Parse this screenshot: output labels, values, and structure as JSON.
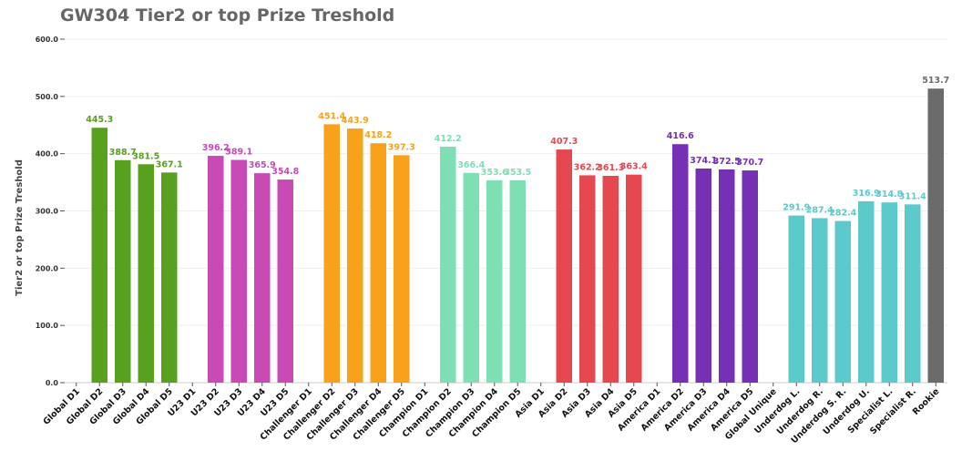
{
  "chart_data": {
    "type": "bar",
    "title": "GW304 Tier2 or top Prize Treshold",
    "xlabel": "",
    "ylabel": "Tier2 or top Prize Treshold",
    "ylim": [
      0,
      600
    ],
    "yticks": [
      "0.0",
      "100.0",
      "200.0",
      "300.0",
      "400.0",
      "500.0",
      "600.0"
    ],
    "ytick_values": [
      0,
      100,
      200,
      300,
      400,
      500,
      600
    ],
    "grid": true,
    "legend": "none",
    "categories": [
      "Global D1",
      "Global D2",
      "Global D3",
      "Global D4",
      "Global D5",
      "U23 D1",
      "U23 D2",
      "U23 D3",
      "U23 D4",
      "U23 D5",
      "Challenger D1",
      "Challenger D2",
      "Challenger D3",
      "Challenger D4",
      "Challenger D5",
      "Champion D1",
      "Champion D2",
      "Champion D3",
      "Champion D4",
      "Champion D5",
      "Asia D1",
      "Asia D2",
      "Asia D3",
      "Asia D4",
      "Asia D5",
      "America D1",
      "America D2",
      "America D3",
      "America D4",
      "America D5",
      "Global Unique",
      "Underdog L.",
      "Underdog R.",
      "Underdog S. R.",
      "Underdog U.",
      "Specialist L.",
      "Specialist R.",
      "Rookie"
    ],
    "values": [
      null,
      445.3,
      388.7,
      381.5,
      367.1,
      null,
      396.2,
      389.1,
      365.9,
      354.8,
      null,
      451.4,
      443.9,
      418.2,
      397.3,
      null,
      412.2,
      366.4,
      353.6,
      353.5,
      null,
      407.3,
      362.2,
      361.3,
      363.4,
      null,
      416.6,
      374.1,
      372.5,
      370.7,
      null,
      291.9,
      287.4,
      282.4,
      316.9,
      314.8,
      311.4,
      513.7
    ],
    "value_labels": [
      "",
      "445.3",
      "388.7",
      "381.5",
      "367.1",
      "",
      "396.2",
      "389.1",
      "365.9",
      "354.8",
      "",
      "451.4",
      "443.9",
      "418.2",
      "397.3",
      "",
      "412.2",
      "366.4",
      "353.6",
      "353.5",
      "",
      "407.3",
      "362.2",
      "361.3",
      "363.4",
      "",
      "416.6",
      "374.1",
      "372.5",
      "370.7",
      "",
      "291.9",
      "287.4",
      "282.4",
      "316.9",
      "314.8",
      "311.4",
      "513.7"
    ],
    "colors": [
      "#58a11e",
      "#58a11e",
      "#58a11e",
      "#58a11e",
      "#58a11e",
      "#c84ab5",
      "#c84ab5",
      "#c84ab5",
      "#c84ab5",
      "#c84ab5",
      "#f9a11b",
      "#f9a11b",
      "#f9a11b",
      "#f9a11b",
      "#f9a11b",
      "#7edfb4",
      "#7edfb4",
      "#7edfb4",
      "#7edfb4",
      "#7edfb4",
      "#e5484f",
      "#e5484f",
      "#e5484f",
      "#e5484f",
      "#e5484f",
      "#7530b4",
      "#7530b4",
      "#7530b4",
      "#7530b4",
      "#7530b4",
      "#5cc9cb",
      "#5cc9cb",
      "#5cc9cb",
      "#5cc9cb",
      "#5cc9cb",
      "#5cc9cb",
      "#5cc9cb",
      "#6b6b6b"
    ]
  }
}
